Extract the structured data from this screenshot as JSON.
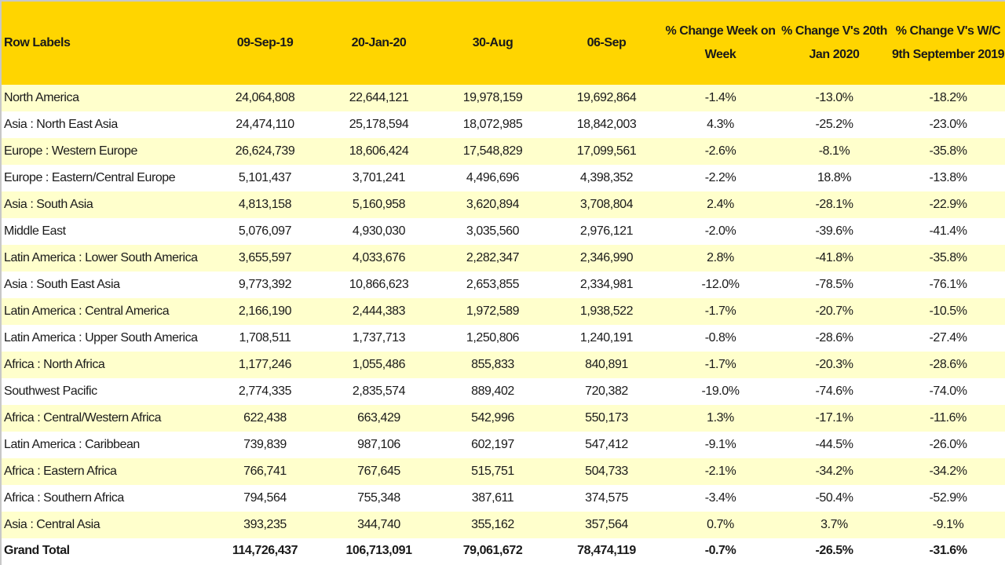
{
  "table": {
    "headers": [
      "Row Labels",
      "09-Sep-19",
      "20-Jan-20",
      "30-Aug",
      "06-Sep",
      "% Change Week on Week",
      "% Change V's 20th Jan 2020",
      "% Change V's W/C 9th September 2019"
    ],
    "rows": [
      [
        "North America",
        "24,064,808",
        "22,644,121",
        "19,978,159",
        "19,692,864",
        "-1.4%",
        "-13.0%",
        "-18.2%"
      ],
      [
        "Asia : North East Asia",
        "24,474,110",
        "25,178,594",
        "18,072,985",
        "18,842,003",
        "4.3%",
        "-25.2%",
        "-23.0%"
      ],
      [
        "Europe : Western Europe",
        "26,624,739",
        "18,606,424",
        "17,548,829",
        "17,099,561",
        "-2.6%",
        "-8.1%",
        "-35.8%"
      ],
      [
        "Europe : Eastern/Central Europe",
        "5,101,437",
        "3,701,241",
        "4,496,696",
        "4,398,352",
        "-2.2%",
        "18.8%",
        "-13.8%"
      ],
      [
        "Asia : South Asia",
        "4,813,158",
        "5,160,958",
        "3,620,894",
        "3,708,804",
        "2.4%",
        "-28.1%",
        "-22.9%"
      ],
      [
        "Middle East",
        "5,076,097",
        "4,930,030",
        "3,035,560",
        "2,976,121",
        "-2.0%",
        "-39.6%",
        "-41.4%"
      ],
      [
        "Latin America : Lower South America",
        "3,655,597",
        "4,033,676",
        "2,282,347",
        "2,346,990",
        "2.8%",
        "-41.8%",
        "-35.8%"
      ],
      [
        "Asia : South East Asia",
        "9,773,392",
        "10,866,623",
        "2,653,855",
        "2,334,981",
        "-12.0%",
        "-78.5%",
        "-76.1%"
      ],
      [
        "Latin America : Central America",
        "2,166,190",
        "2,444,383",
        "1,972,589",
        "1,938,522",
        "-1.7%",
        "-20.7%",
        "-10.5%"
      ],
      [
        "Latin America : Upper South America",
        "1,708,511",
        "1,737,713",
        "1,250,806",
        "1,240,191",
        "-0.8%",
        "-28.6%",
        "-27.4%"
      ],
      [
        "Africa : North Africa",
        "1,177,246",
        "1,055,486",
        "855,833",
        "840,891",
        "-1.7%",
        "-20.3%",
        "-28.6%"
      ],
      [
        "Southwest Pacific",
        "2,774,335",
        "2,835,574",
        "889,402",
        "720,382",
        "-19.0%",
        "-74.6%",
        "-74.0%"
      ],
      [
        "Africa : Central/Western Africa",
        "622,438",
        "663,429",
        "542,996",
        "550,173",
        "1.3%",
        "-17.1%",
        "-11.6%"
      ],
      [
        "Latin America : Caribbean",
        "739,839",
        "987,106",
        "602,197",
        "547,412",
        "-9.1%",
        "-44.5%",
        "-26.0%"
      ],
      [
        "Africa : Eastern Africa",
        "766,741",
        "767,645",
        "515,751",
        "504,733",
        "-2.1%",
        "-34.2%",
        "-34.2%"
      ],
      [
        "Africa : Southern Africa",
        "794,564",
        "755,348",
        "387,611",
        "374,575",
        "-3.4%",
        "-50.4%",
        "-52.9%"
      ],
      [
        "Asia : Central Asia",
        "393,235",
        "344,740",
        "355,162",
        "357,564",
        "0.7%",
        "3.7%",
        "-9.1%"
      ]
    ],
    "total": [
      "Grand Total",
      "114,726,437",
      "106,713,091",
      "79,061,672",
      "78,474,119",
      "-0.7%",
      "-26.5%",
      "-31.6%"
    ]
  },
  "colors": {
    "header": "#FFD500",
    "band": "#FFFFCC"
  }
}
